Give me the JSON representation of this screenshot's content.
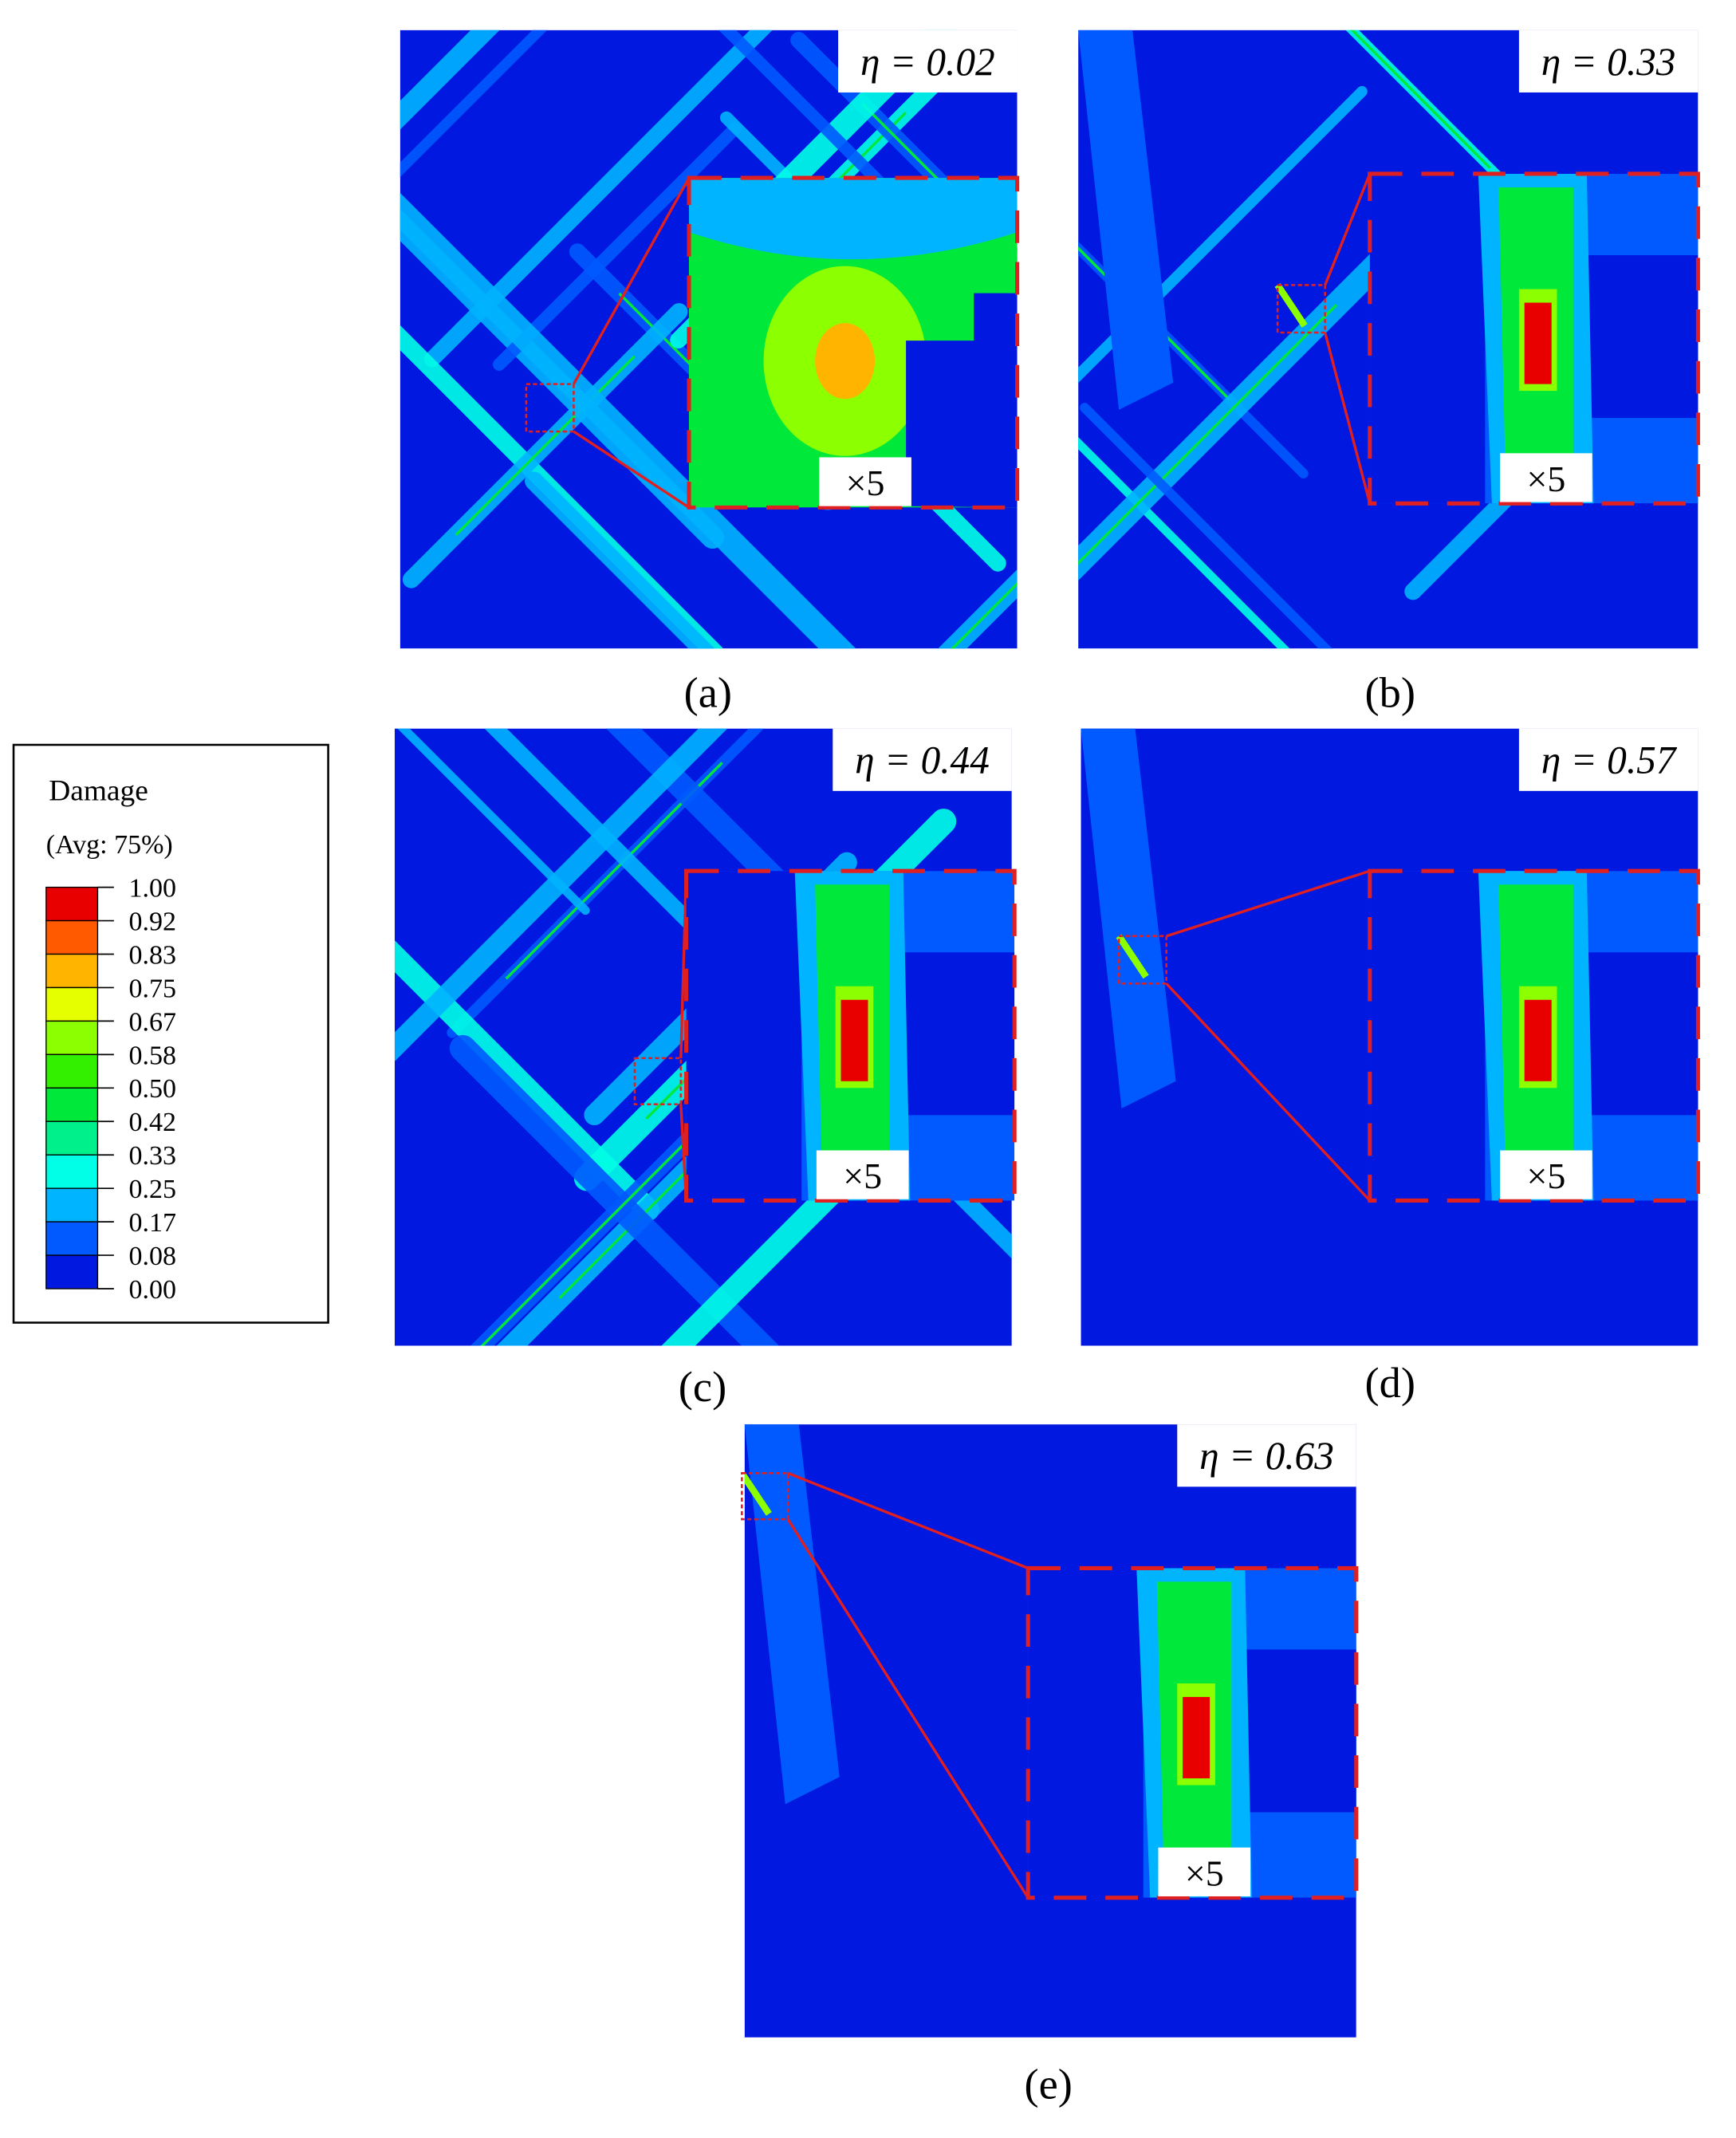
{
  "legend": {
    "title": "Damage",
    "subtitle": "(Avg: 75%)",
    "levels": [
      "1.00",
      "0.92",
      "0.83",
      "0.75",
      "0.67",
      "0.58",
      "0.50",
      "0.42",
      "0.33",
      "0.25",
      "0.17",
      "0.08",
      "0.00"
    ],
    "colors": [
      "#e80000",
      "#ff5a00",
      "#ffb400",
      "#e6ff00",
      "#8cff00",
      "#32f000",
      "#00e83a",
      "#00f08c",
      "#00ffe6",
      "#00b4ff",
      "#005aff",
      "#0018e0"
    ]
  },
  "panels": [
    {
      "label": "(a)",
      "eta": "η = 0.02",
      "zoom": "×5"
    },
    {
      "label": "(b)",
      "eta": "η = 0.33",
      "zoom": "×5"
    },
    {
      "label": "(c)",
      "eta": "η = 0.44",
      "zoom": "×5"
    },
    {
      "label": "(d)",
      "eta": "η = 0.57",
      "zoom": "×5"
    },
    {
      "label": "(e)",
      "eta": "η = 0.63",
      "zoom": "×5"
    }
  ]
}
